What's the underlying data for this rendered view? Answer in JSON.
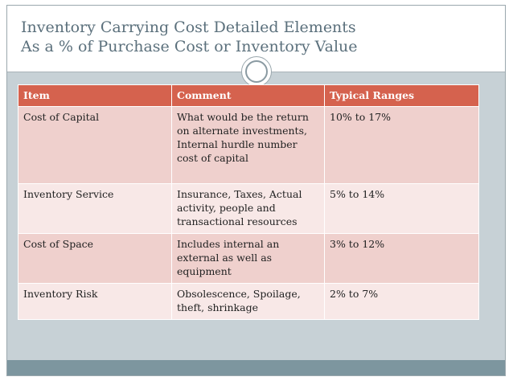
{
  "slide": {
    "title_line1": "Inventory Carrying Cost Detailed Elements",
    "title_line2": "As a % of Purchase Cost or Inventory Value"
  },
  "table": {
    "headers": [
      "Item",
      "Comment",
      "Typical Ranges"
    ],
    "rows": [
      {
        "item": "Cost of Capital",
        "comment": "What would be the return on alternate investments, Internal hurdle number cost of capital",
        "range": "10% to 17%"
      },
      {
        "item": "Inventory Service",
        "comment": "Insurance, Taxes, Actual activity, people  and transactional resources",
        "range": "5% to 14%"
      },
      {
        "item": "Cost of Space",
        "comment": "Includes internal an external as well as equipment",
        "range": "3% to 12%"
      },
      {
        "item": "Inventory Risk",
        "comment": "Obsolescence, Spoilage, theft, shrinkage",
        "range": "2% to 7%"
      }
    ]
  },
  "colors": {
    "header_bg": "#d5624e",
    "row_odd": "#efd0cd",
    "row_even": "#f8e8e7",
    "content_bg": "#c7d1d6",
    "footer_bar": "#7d969f",
    "title_text": "#5b707c"
  }
}
